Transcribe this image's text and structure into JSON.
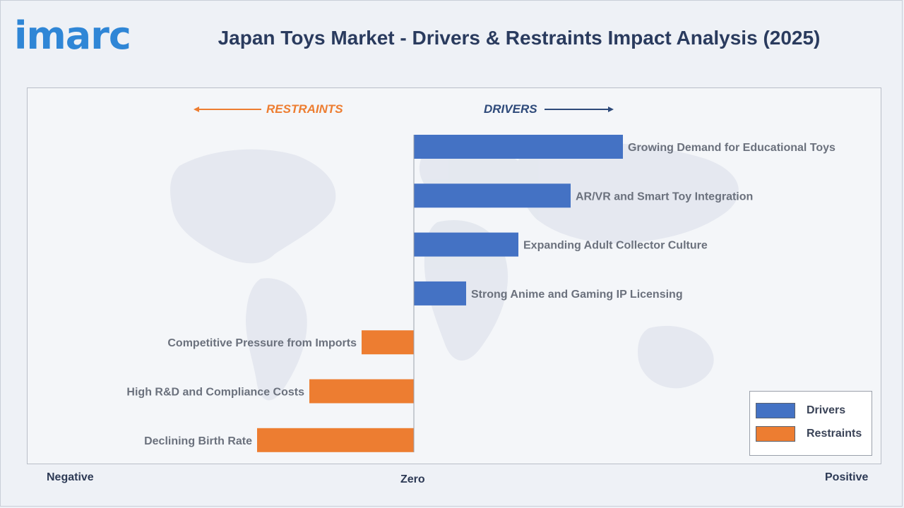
{
  "header": {
    "logo_text": "imarc",
    "title": "Japan Toys Market - Drivers & Restraints Impact Analysis (2025)"
  },
  "labels": {
    "restraints": "RESTRAINTS",
    "drivers": "DRIVERS",
    "negative": "Negative",
    "zero": "Zero",
    "positive": "Positive"
  },
  "legend": {
    "items": [
      {
        "label": "Drivers",
        "color": "#4472c4"
      },
      {
        "label": "Restraints",
        "color": "#ed7d31"
      }
    ]
  },
  "colors": {
    "drivers": "#4472c4",
    "restraints": "#ed7d31",
    "drivers_text": "#2e4a7a",
    "restraints_text": "#ed7d31"
  },
  "chart_data": {
    "type": "bar",
    "orientation": "horizontal",
    "title": "Japan Toys Market - Drivers & Restraints Impact Analysis (2025)",
    "xlim": [
      -5,
      5
    ],
    "x_axis_labels": [
      "Negative",
      "Zero",
      "Positive"
    ],
    "grid": false,
    "legend_position": "bottom-right",
    "categories": [
      "Growing Demand for Educational Toys",
      "AR/VR and Smart Toy Integration",
      "Expanding Adult Collector Culture",
      "Strong Anime and Gaming IP Licensing",
      "Competitive Pressure from Imports",
      "High R&D and Compliance Costs",
      "Declining Birth Rate"
    ],
    "series": [
      {
        "name": "Drivers",
        "values": [
          4,
          3,
          2,
          1,
          null,
          null,
          null
        ]
      },
      {
        "name": "Restraints",
        "values": [
          null,
          null,
          null,
          null,
          -1,
          -2,
          -3
        ]
      }
    ]
  }
}
